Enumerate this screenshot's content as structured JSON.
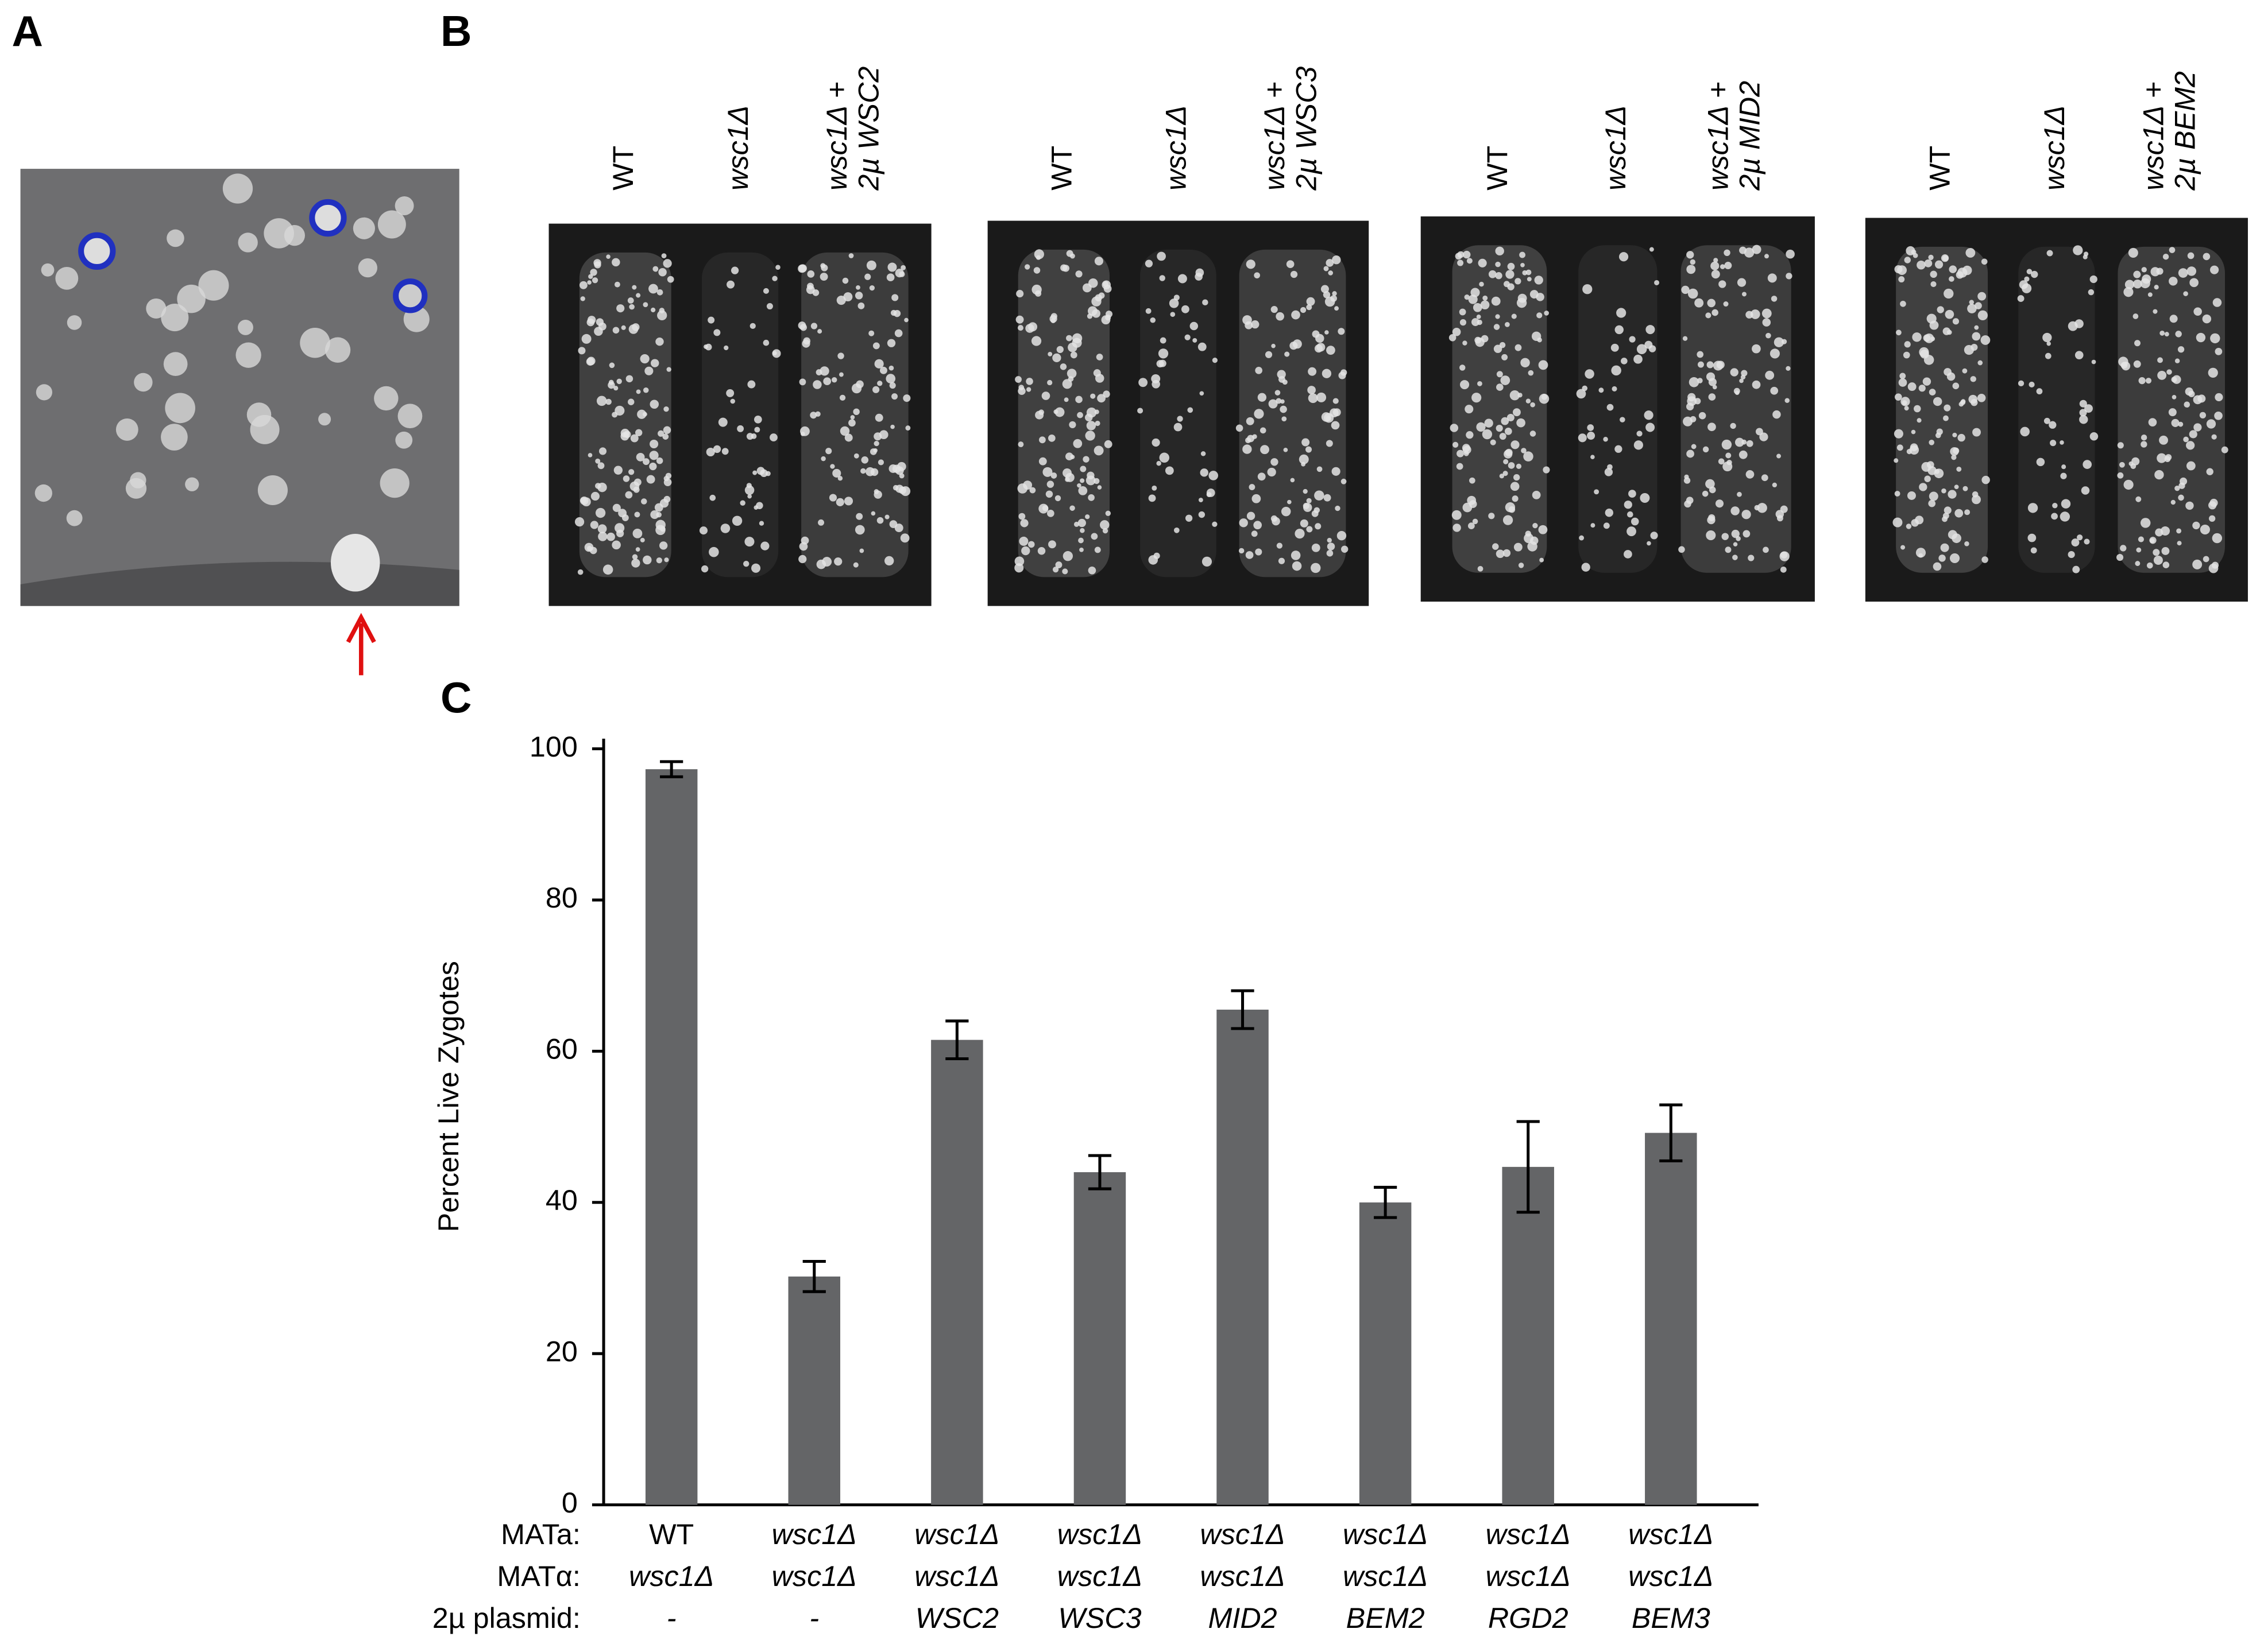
{
  "panel_a": {
    "label": "A"
  },
  "panel_b": {
    "label": "B",
    "plates": [
      {
        "lanes": [
          [
            "WT"
          ],
          [
            "wsc1Δ"
          ],
          [
            "wsc1Δ +",
            "2µ WSC2"
          ]
        ]
      },
      {
        "lanes": [
          [
            "WT"
          ],
          [
            "wsc1Δ"
          ],
          [
            "wsc1Δ +",
            "2µ WSC3"
          ]
        ]
      },
      {
        "lanes": [
          [
            "WT"
          ],
          [
            "wsc1Δ"
          ],
          [
            "wsc1Δ +",
            "2µ MID2"
          ]
        ]
      },
      {
        "lanes": [
          [
            "WT"
          ],
          [
            "wsc1Δ"
          ],
          [
            "wsc1Δ +",
            "2µ BEM2"
          ]
        ]
      }
    ]
  },
  "chart_data": {
    "type": "bar",
    "panel_label": "C",
    "y_label": "Percent Live Zygotes",
    "category_rows": [
      {
        "label": "MATa:",
        "values": [
          "WT",
          "wsc1Δ",
          "wsc1Δ",
          "wsc1Δ",
          "wsc1Δ",
          "wsc1Δ",
          "wsc1Δ",
          "wsc1Δ"
        ]
      },
      {
        "label": "MATα:",
        "values": [
          "wsc1Δ",
          "wsc1Δ",
          "wsc1Δ",
          "wsc1Δ",
          "wsc1Δ",
          "wsc1Δ",
          "wsc1Δ",
          "wsc1Δ"
        ]
      },
      {
        "label": "2µ plasmid:",
        "values": [
          "-",
          "-",
          "WSC2",
          "WSC3",
          "MID2",
          "BEM2",
          "RGD2",
          "BEM3"
        ]
      }
    ],
    "values": [
      97.3,
      30.2,
      61.5,
      44,
      65.5,
      40,
      44.7,
      49.2
    ],
    "errors": [
      1,
      2,
      2.5,
      2.2,
      2.5,
      2,
      6,
      3.7
    ],
    "color": "#646567",
    "ylim": [
      0,
      100
    ],
    "yticks": [
      0,
      20,
      40,
      60,
      80,
      100
    ]
  }
}
